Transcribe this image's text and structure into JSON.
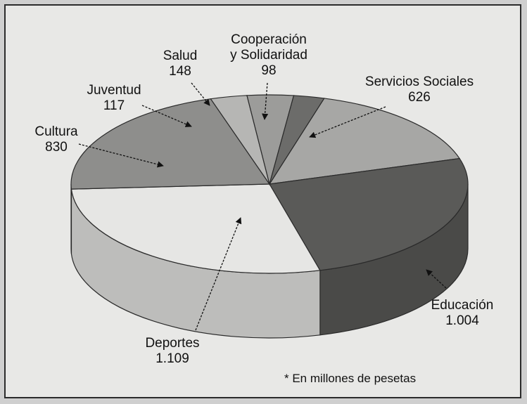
{
  "chart_data": {
    "type": "pie",
    "style": "3d",
    "categories": [
      "Servicios Sociales",
      "Educación",
      "Deportes",
      "Cultura",
      "Juventud",
      "Salud",
      "Cooperación y Solidaridad"
    ],
    "values": [
      626,
      1004,
      1109,
      830,
      117,
      148,
      98
    ],
    "value_labels": [
      "626",
      "1.004",
      "1.109",
      "830",
      "117",
      "148",
      "98"
    ],
    "label_lines": [
      [
        "Servicios Sociales"
      ],
      [
        "Educación"
      ],
      [
        "Deportes"
      ],
      [
        "Cultura"
      ],
      [
        "Juventud"
      ],
      [
        "Salud"
      ],
      [
        "Cooperación",
        "y Solidaridad"
      ]
    ],
    "colors": [
      "#a7a7a5",
      "#5a5a58",
      "#e6e6e4",
      "#8e8e8c",
      "#b6b6b4",
      "#9c9c9a",
      "#6c6c6a"
    ],
    "footnote": "* En millones de pesetas",
    "legend": "none",
    "grid": false
  }
}
